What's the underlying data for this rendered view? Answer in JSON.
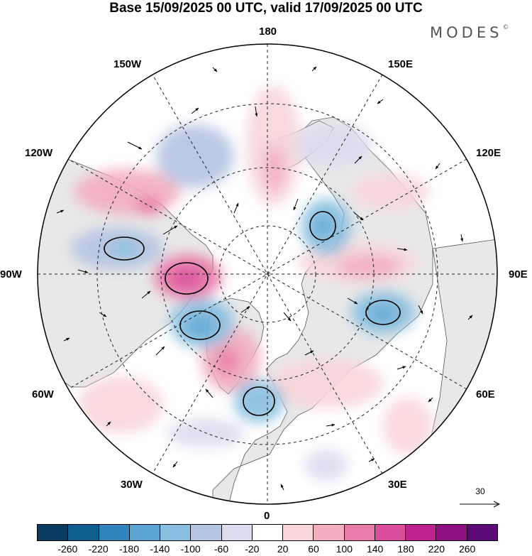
{
  "title": "Base 15/09/2025 00 UTC, valid 17/09/2025 00 UTC",
  "brand": "MODES",
  "brand_mark": "©",
  "longitude_labels": [
    "180",
    "150E",
    "120E",
    "90E",
    "60E",
    "30E",
    "0",
    "30W",
    "60W",
    "90W",
    "120W",
    "150W"
  ],
  "reference_vector": {
    "label": "30"
  },
  "colorbar": {
    "ticks": [
      "-260",
      "-220",
      "-180",
      "-140",
      "-100",
      "-60",
      "-20",
      "20",
      "60",
      "100",
      "140",
      "180",
      "220",
      "260"
    ],
    "colors": [
      "#0b3b5e",
      "#0e5f8f",
      "#2f86bf",
      "#5aa5d4",
      "#89bfe0",
      "#b6c5e2",
      "#dcdcef",
      "#ffffff",
      "#f8d6da",
      "#f3aebf",
      "#ea7aa8",
      "#dc4d9b",
      "#be228e",
      "#8f0f85",
      "#5c0a77"
    ]
  },
  "colors": {
    "land": "#e8e8e8",
    "ocean": "#ffffff",
    "coast": "#333333"
  }
}
